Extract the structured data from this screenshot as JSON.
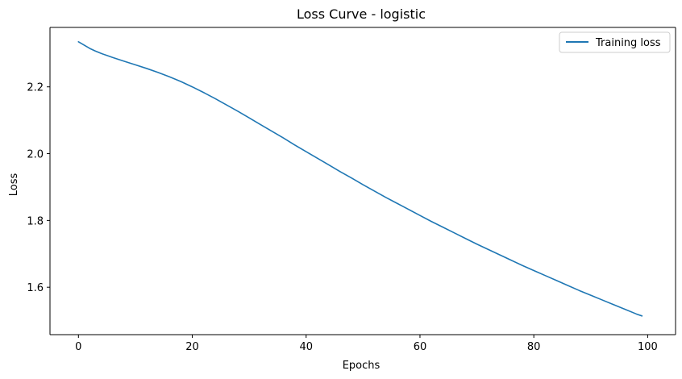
{
  "chart_data": {
    "type": "line",
    "title": "Loss Curve - logistic",
    "xlabel": "Epochs",
    "ylabel": "Loss",
    "xlim": [
      -5,
      104.9
    ],
    "ylim": [
      1.458,
      2.378
    ],
    "xticks": [
      0,
      20,
      40,
      60,
      80,
      100
    ],
    "xtick_labels": [
      "0",
      "20",
      "40",
      "60",
      "80",
      "100"
    ],
    "yticks": [
      1.6,
      1.8,
      2.0,
      2.2
    ],
    "ytick_labels": [
      "1.6",
      "1.8",
      "2.0",
      "2.2"
    ],
    "grid": false,
    "legend_position": "top-right",
    "series": [
      {
        "name": "Training loss",
        "color": "#1f77b4",
        "x": [
          0,
          1,
          2,
          3,
          4,
          5,
          6,
          8,
          10,
          12,
          14,
          16,
          18,
          20,
          22,
          24,
          26,
          28,
          30,
          32,
          34,
          36,
          38,
          40,
          42,
          44,
          46,
          48,
          50,
          52,
          54,
          56,
          58,
          60,
          62,
          64,
          66,
          68,
          70,
          72,
          74,
          76,
          78,
          80,
          82,
          84,
          86,
          88,
          90,
          92,
          94,
          96,
          98,
          99
        ],
        "values": [
          2.335,
          2.325,
          2.315,
          2.307,
          2.3,
          2.294,
          2.288,
          2.277,
          2.266,
          2.255,
          2.243,
          2.23,
          2.216,
          2.2,
          2.183,
          2.165,
          2.146,
          2.127,
          2.107,
          2.087,
          2.067,
          2.047,
          2.026,
          2.006,
          1.986,
          1.966,
          1.946,
          1.927,
          1.907,
          1.888,
          1.869,
          1.851,
          1.833,
          1.815,
          1.797,
          1.78,
          1.763,
          1.746,
          1.729,
          1.713,
          1.697,
          1.681,
          1.665,
          1.65,
          1.635,
          1.62,
          1.605,
          1.59,
          1.576,
          1.562,
          1.548,
          1.534,
          1.52,
          1.514
        ]
      }
    ]
  }
}
